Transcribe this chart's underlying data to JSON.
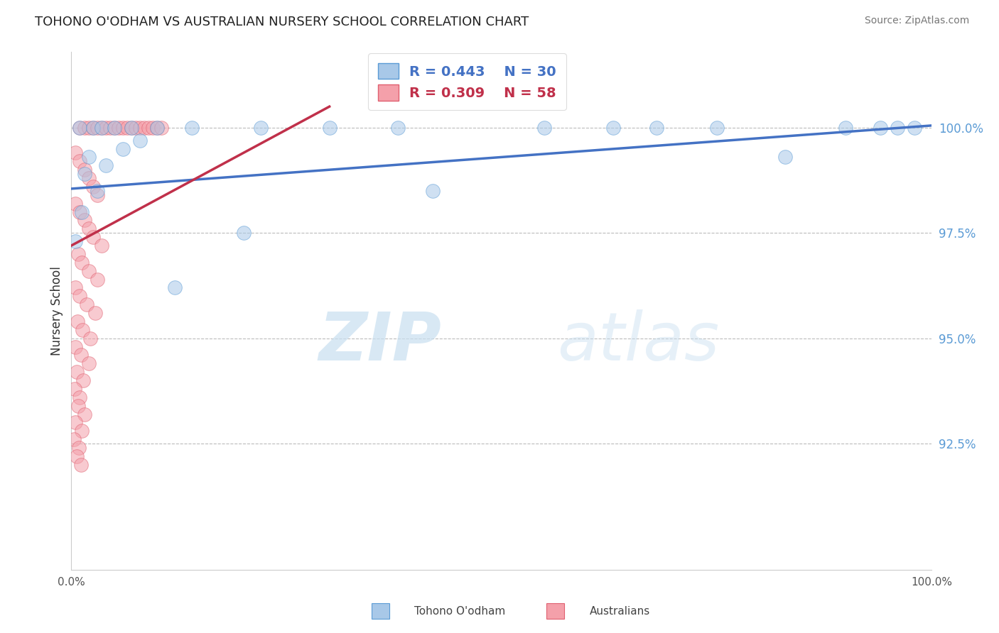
{
  "title": "TOHONO O'ODHAM VS AUSTRALIAN NURSERY SCHOOL CORRELATION CHART",
  "source": "Source: ZipAtlas.com",
  "ylabel": "Nursery School",
  "legend_blue_r": "R = 0.443",
  "legend_blue_n": "N = 30",
  "legend_pink_r": "R = 0.309",
  "legend_pink_n": "N = 58",
  "watermark_zip": "ZIP",
  "watermark_atlas": "atlas",
  "xlim": [
    0.0,
    100.0
  ],
  "ylim": [
    89.5,
    101.8
  ],
  "yticks": [
    92.5,
    95.0,
    97.5,
    100.0
  ],
  "blue_fill": "#A8C8E8",
  "blue_edge": "#5B9BD5",
  "pink_fill": "#F4A0AA",
  "pink_edge": "#E06070",
  "blue_line_color": "#4472C4",
  "pink_line_color": "#C0304A",
  "background_color": "#FFFFFF",
  "blue_points_x": [
    1.0,
    2.5,
    3.5,
    5.0,
    7.0,
    10.0,
    14.0,
    22.0,
    1.5,
    2.0,
    4.0,
    6.0,
    8.0,
    1.2,
    3.0,
    30.0,
    38.0,
    55.0,
    63.0,
    68.0,
    75.0,
    83.0,
    90.0,
    94.0,
    96.0,
    98.0,
    42.0,
    0.5,
    12.0,
    20.0
  ],
  "blue_points_y": [
    100.0,
    100.0,
    100.0,
    100.0,
    100.0,
    100.0,
    100.0,
    100.0,
    98.9,
    99.3,
    99.1,
    99.5,
    99.7,
    98.0,
    98.5,
    100.0,
    100.0,
    100.0,
    100.0,
    100.0,
    100.0,
    99.3,
    100.0,
    100.0,
    100.0,
    100.0,
    98.5,
    97.3,
    96.2,
    97.5
  ],
  "pink_points_x": [
    1.0,
    1.5,
    2.0,
    2.5,
    3.0,
    3.5,
    4.0,
    4.5,
    5.0,
    5.5,
    6.0,
    6.5,
    7.0,
    7.5,
    8.0,
    8.5,
    9.0,
    9.5,
    10.0,
    10.5,
    0.5,
    1.0,
    1.5,
    2.0,
    2.5,
    3.0,
    0.5,
    1.0,
    1.5,
    2.0,
    2.5,
    3.5,
    0.8,
    1.2,
    2.0,
    3.0,
    0.5,
    1.0,
    1.8,
    2.8,
    0.7,
    1.3,
    2.2,
    0.5,
    1.1,
    2.0,
    0.6,
    1.4,
    0.4,
    1.0,
    0.8,
    1.5,
    0.5,
    1.2,
    0.3,
    0.9,
    0.6,
    1.1
  ],
  "pink_points_y": [
    100.0,
    100.0,
    100.0,
    100.0,
    100.0,
    100.0,
    100.0,
    100.0,
    100.0,
    100.0,
    100.0,
    100.0,
    100.0,
    100.0,
    100.0,
    100.0,
    100.0,
    100.0,
    100.0,
    100.0,
    99.4,
    99.2,
    99.0,
    98.8,
    98.6,
    98.4,
    98.2,
    98.0,
    97.8,
    97.6,
    97.4,
    97.2,
    97.0,
    96.8,
    96.6,
    96.4,
    96.2,
    96.0,
    95.8,
    95.6,
    95.4,
    95.2,
    95.0,
    94.8,
    94.6,
    94.4,
    94.2,
    94.0,
    93.8,
    93.6,
    93.4,
    93.2,
    93.0,
    92.8,
    92.6,
    92.4,
    92.2,
    92.0
  ],
  "blue_trendline": [
    98.55,
    100.05
  ],
  "pink_trendline_x": [
    0.0,
    30.0
  ],
  "pink_trendline_y": [
    97.2,
    100.5
  ]
}
